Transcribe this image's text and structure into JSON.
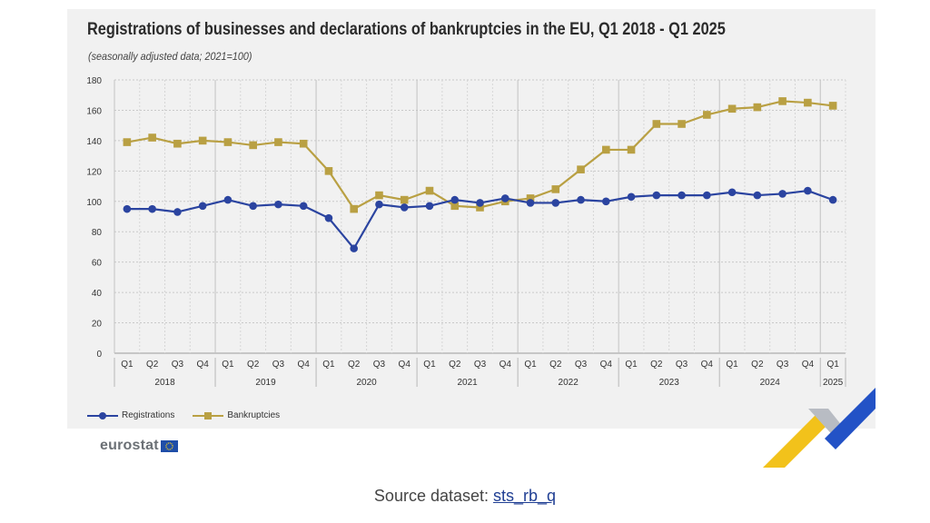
{
  "title": "Registrations of businesses and declarations of bankruptcies in the EU, Q1 2018 - Q1 2025",
  "subtitle": "(seasonally adjusted data; 2021=100)",
  "legend": {
    "registrations": "Registrations",
    "bankruptcies": "Bankruptcies"
  },
  "logo": {
    "text": "eurostat",
    "icon": "eu-flag-icon"
  },
  "source": {
    "label": "Source dataset:",
    "link": "sts_rb_q"
  },
  "colors": {
    "registrations": "#2b44a0",
    "bankruptcies": "#b9a043",
    "background": "#f1f1f1"
  },
  "chart_data": {
    "type": "line",
    "title": "Registrations of businesses and declarations of bankruptcies in the EU, Q1 2018 - Q1 2025",
    "subtitle": "(seasonally adjusted data; 2021=100)",
    "ylim": [
      0,
      180
    ],
    "yticks": [
      0,
      20,
      40,
      60,
      80,
      100,
      120,
      140,
      160,
      180
    ],
    "grid": true,
    "legend_position": "bottom-left",
    "years": [
      "2018",
      "2019",
      "2020",
      "2021",
      "2022",
      "2023",
      "2024",
      "2025"
    ],
    "categories": [
      "Q1",
      "Q2",
      "Q3",
      "Q4",
      "Q1",
      "Q2",
      "Q3",
      "Q4",
      "Q1",
      "Q2",
      "Q3",
      "Q4",
      "Q1",
      "Q2",
      "Q3",
      "Q4",
      "Q1",
      "Q2",
      "Q3",
      "Q4",
      "Q1",
      "Q2",
      "Q3",
      "Q4",
      "Q1",
      "Q2",
      "Q3",
      "Q4",
      "Q1"
    ],
    "series": [
      {
        "name": "Registrations",
        "color": "#2b44a0",
        "marker": "circle",
        "values": [
          95,
          95,
          93,
          97,
          101,
          97,
          98,
          97,
          89,
          69,
          98,
          96,
          97,
          101,
          99,
          102,
          99,
          99,
          101,
          100,
          103,
          104,
          104,
          104,
          106,
          104,
          105,
          107,
          101
        ]
      },
      {
        "name": "Bankruptcies",
        "color": "#b9a043",
        "marker": "square",
        "values": [
          139,
          142,
          138,
          140,
          139,
          137,
          139,
          138,
          120,
          95,
          104,
          101,
          107,
          97,
          96,
          100,
          102,
          108,
          121,
          134,
          134,
          151,
          151,
          157,
          161,
          162,
          166,
          165,
          163
        ]
      }
    ]
  }
}
